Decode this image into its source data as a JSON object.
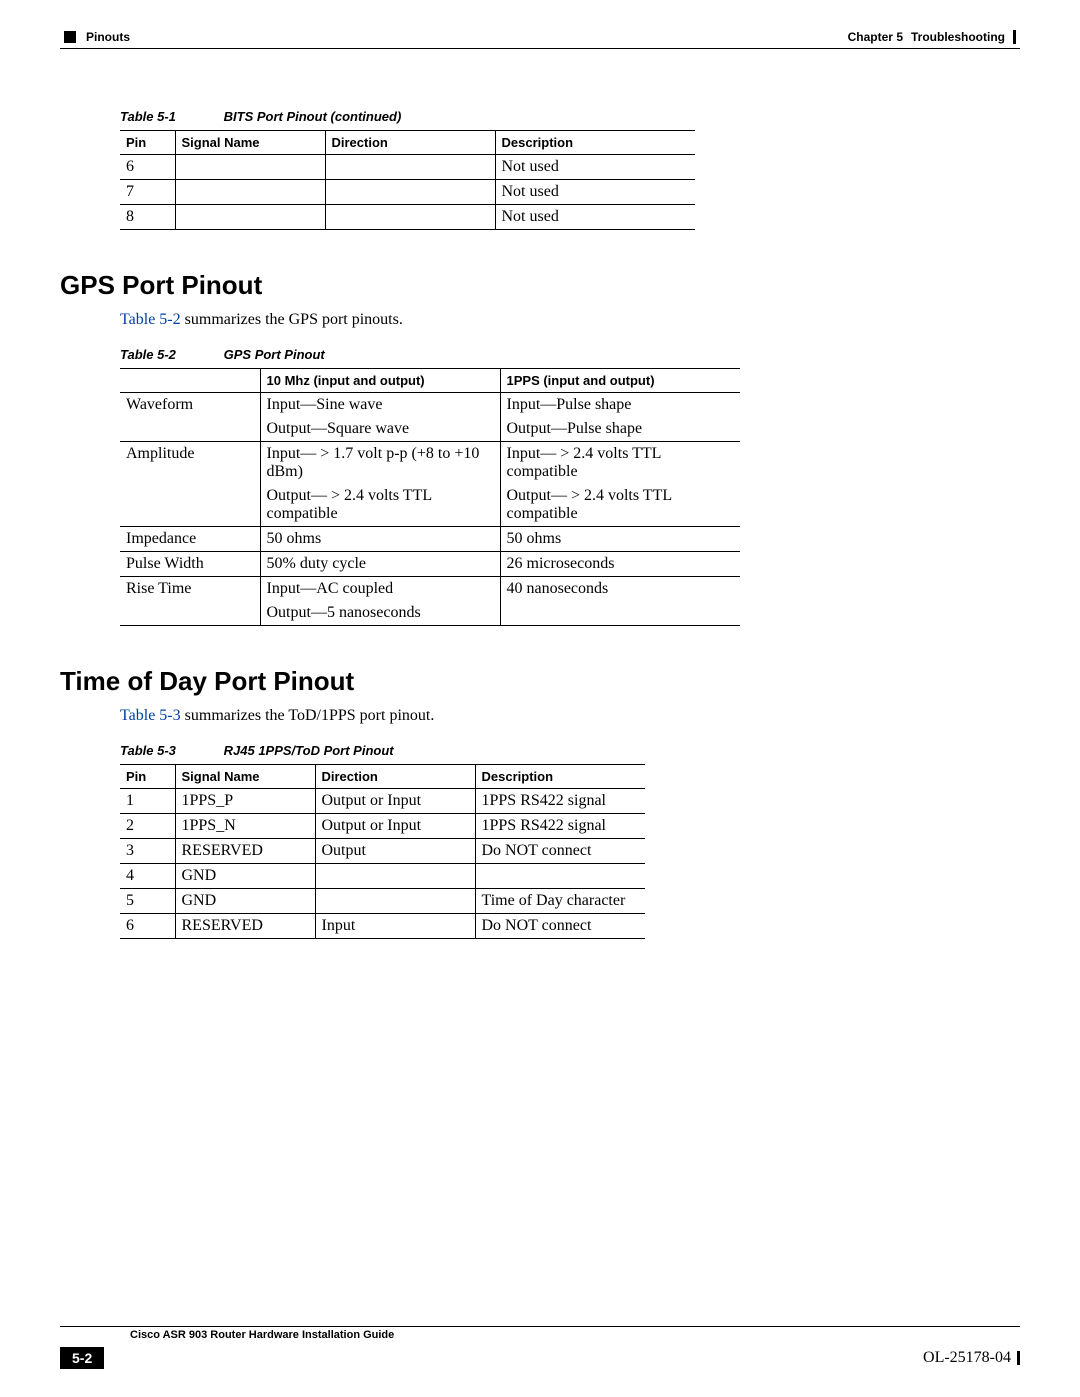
{
  "header": {
    "left_label": "Pinouts",
    "chapter": "Chapter 5",
    "chapter_title": "Troubleshooting"
  },
  "table51": {
    "caption_num": "Table 5-1",
    "caption_title": "BITS Port Pinout (continued)",
    "headers": [
      "Pin",
      "Signal Name",
      "Direction",
      "Description"
    ],
    "rows": [
      [
        "6",
        "",
        "",
        "Not used"
      ],
      [
        "7",
        "",
        "",
        "Not used"
      ],
      [
        "8",
        "",
        "",
        "Not used"
      ]
    ]
  },
  "section_gps": {
    "title": "GPS Port Pinout",
    "intro_link": "Table 5-2",
    "intro_rest": " summarizes the GPS port pinouts."
  },
  "table52": {
    "caption_num": "Table 5-2",
    "caption_title": "GPS Port Pinout",
    "headers": [
      "",
      "10 Mhz (input and output)",
      "1PPS (input and output)"
    ],
    "rows": [
      {
        "label": "Waveform",
        "c2a": "Input—Sine wave",
        "c3a": "Input—Pulse shape",
        "c2b": "Output—Square wave",
        "c3b": "Output—Pulse shape"
      },
      {
        "label": "Amplitude",
        "c2a": "Input— > 1.7 volt p-p (+8 to +10 dBm)",
        "c3a": "Input— > 2.4 volts TTL compatible",
        "c2b": "Output— > 2.4 volts TTL compatible",
        "c3b": "Output— > 2.4 volts TTL compatible"
      },
      {
        "label": "Impedance",
        "c2a": "50 ohms",
        "c3a": "50 ohms"
      },
      {
        "label": "Pulse Width",
        "c2a": "50% duty cycle",
        "c3a": "26 microseconds"
      },
      {
        "label": "Rise Time",
        "c2a": "Input—AC coupled",
        "c3a": "40 nanoseconds",
        "c2b": "Output—5 nanoseconds",
        "c3b": ""
      }
    ]
  },
  "section_tod": {
    "title": "Time of Day Port Pinout",
    "intro_link": "Table 5-3",
    "intro_rest": " summarizes the ToD/1PPS port pinout."
  },
  "table53": {
    "caption_num": "Table 5-3",
    "caption_title": "RJ45 1PPS/ToD Port Pinout",
    "headers": [
      "Pin",
      "Signal Name",
      "Direction",
      "Description"
    ],
    "rows": [
      [
        "1",
        "1PPS_P",
        "Output or Input",
        "1PPS RS422 signal"
      ],
      [
        "2",
        "1PPS_N",
        "Output or Input",
        "1PPS RS422 signal"
      ],
      [
        "3",
        "RESERVED",
        "Output",
        "Do NOT connect"
      ],
      [
        "4",
        "GND",
        "",
        ""
      ],
      [
        "5",
        "GND",
        "",
        "Time of Day character"
      ],
      [
        "6",
        "RESERVED",
        "Input",
        "Do NOT connect"
      ]
    ]
  },
  "footer": {
    "book_title": "Cisco ASR 903 Router Hardware Installation Guide",
    "page_num": "5-2",
    "doc_id": "OL-25178-04"
  }
}
